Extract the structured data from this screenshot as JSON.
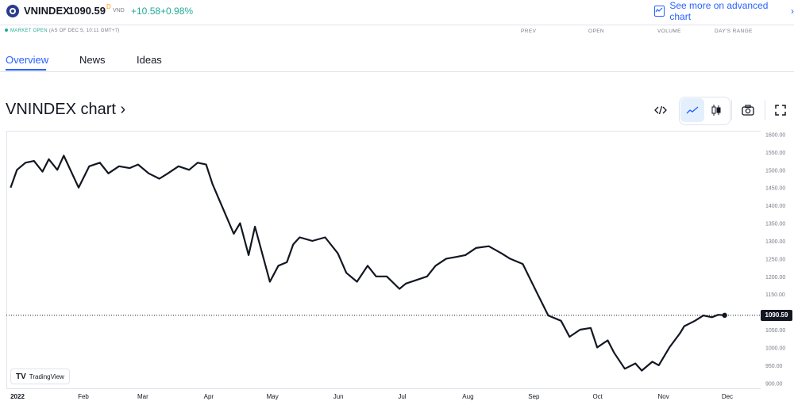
{
  "symbol": {
    "name": "VNINDEX",
    "price": "1090.59",
    "price_superscript": "D",
    "currency": "VND",
    "change": "+10.58",
    "change_pct": "+0.98%"
  },
  "advanced_link": "See more on advanced chart",
  "status": {
    "market": "MARKET OPEN",
    "as_of": "(AS OF DEC 5, 10:11 GMT+7)"
  },
  "stats_headers": [
    "PREV",
    "OPEN",
    "VOLUME",
    "DAY'S RANGE"
  ],
  "tabs": [
    {
      "label": "Overview",
      "active": true
    },
    {
      "label": "News",
      "active": false
    },
    {
      "label": "Ideas",
      "active": false
    }
  ],
  "chart_title": "VNINDEX chart ›",
  "toolbar_icons": [
    "embed-icon",
    "line-chart-icon",
    "candles-icon",
    "camera-icon",
    "fullscreen-icon"
  ],
  "branding": "TradingView",
  "last_price_label": "1090.59",
  "colors": {
    "accent": "#2962ff",
    "positive": "#22ab94",
    "line": "#131722"
  },
  "chart_data": {
    "type": "line",
    "title": "",
    "y_ticks": [
      "1600.00",
      "1550.00",
      "1500.00",
      "1450.00",
      "1400.00",
      "1350.00",
      "1300.00",
      "1250.00",
      "1200.00",
      "1150.00",
      "1100.00",
      "1050.00",
      "1000.00",
      "950.00",
      "900.00"
    ],
    "x_ticks": [
      "2022",
      "Feb",
      "Mar",
      "Apr",
      "May",
      "Jun",
      "Jul",
      "Aug",
      "Sep",
      "Oct",
      "Nov",
      "Dec"
    ],
    "ylim": [
      885,
      1610
    ],
    "series": [
      {
        "x": [
          "2022-01-03",
          "2022-01-06",
          "2022-01-10",
          "2022-01-14",
          "2022-01-18",
          "2022-01-21",
          "2022-01-25",
          "2022-01-28",
          "2022-02-04",
          "2022-02-09",
          "2022-02-14",
          "2022-02-18",
          "2022-02-23",
          "2022-02-28",
          "2022-03-04",
          "2022-03-09",
          "2022-03-14",
          "2022-03-18",
          "2022-03-23",
          "2022-03-28",
          "2022-04-01",
          "2022-04-05",
          "2022-04-08",
          "2022-04-13",
          "2022-04-18",
          "2022-04-21",
          "2022-04-25",
          "2022-04-28",
          "2022-05-05",
          "2022-05-09",
          "2022-05-13",
          "2022-05-16",
          "2022-05-19",
          "2022-05-25",
          "2022-05-31",
          "2022-06-06",
          "2022-06-10",
          "2022-06-15",
          "2022-06-20",
          "2022-06-24",
          "2022-06-29",
          "2022-07-05",
          "2022-07-08",
          "2022-07-13",
          "2022-07-18",
          "2022-07-22",
          "2022-07-27",
          "2022-08-01",
          "2022-08-05",
          "2022-08-10",
          "2022-08-16",
          "2022-08-22",
          "2022-08-26",
          "2022-09-01",
          "2022-09-08",
          "2022-09-13",
          "2022-09-19",
          "2022-09-23",
          "2022-09-28",
          "2022-10-03",
          "2022-10-06",
          "2022-10-11",
          "2022-10-14",
          "2022-10-19",
          "2022-10-24",
          "2022-10-27",
          "2022-11-01",
          "2022-11-04",
          "2022-11-09",
          "2022-11-14",
          "2022-11-16",
          "2022-11-21",
          "2022-11-25",
          "2022-11-29",
          "2022-12-02",
          "2022-12-05"
        ],
        "y": [
          1450,
          1500,
          1520,
          1525,
          1495,
          1530,
          1500,
          1540,
          1450,
          1510,
          1520,
          1490,
          1510,
          1505,
          1515,
          1490,
          1475,
          1490,
          1510,
          1500,
          1520,
          1515,
          1460,
          1390,
          1320,
          1350,
          1260,
          1340,
          1185,
          1230,
          1240,
          1290,
          1310,
          1300,
          1310,
          1265,
          1210,
          1185,
          1230,
          1200,
          1200,
          1165,
          1180,
          1190,
          1200,
          1230,
          1250,
          1255,
          1260,
          1280,
          1285,
          1265,
          1250,
          1235,
          1150,
          1090,
          1075,
          1030,
          1050,
          1055,
          1000,
          1020,
          985,
          940,
          955,
          935,
          960,
          950,
          1000,
          1040,
          1060,
          1075,
          1090,
          1085,
          1092,
          1090.59
        ]
      }
    ]
  }
}
